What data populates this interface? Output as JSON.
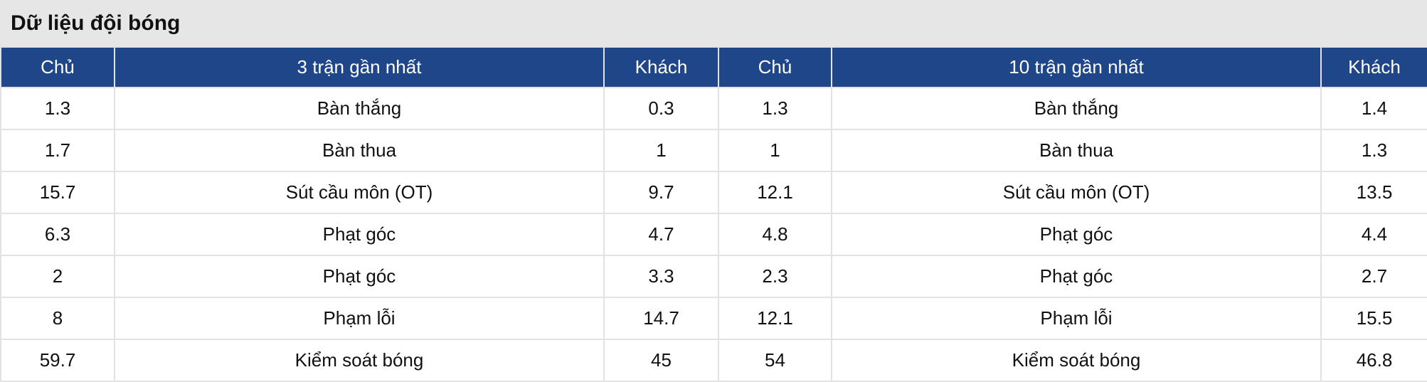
{
  "title": "Dữ liệu đội bóng",
  "header": [
    "Chủ",
    "3 trận gần nhất",
    "Khách",
    "Chủ",
    "10 trận gần nhất",
    "Khách"
  ],
  "rows": [
    [
      "1.3",
      "Bàn thắng",
      "0.3",
      "1.3",
      "Bàn thắng",
      "1.4"
    ],
    [
      "1.7",
      "Bàn thua",
      "1",
      "1",
      "Bàn thua",
      "1.3"
    ],
    [
      "15.7",
      "Sút cầu môn (OT)",
      "9.7",
      "12.1",
      "Sút cầu môn (OT)",
      "13.5"
    ],
    [
      "6.3",
      "Phạt góc",
      "4.7",
      "4.8",
      "Phạt góc",
      "4.4"
    ],
    [
      "2",
      "Phạt góc",
      "3.3",
      "2.3",
      "Phạt góc",
      "2.7"
    ],
    [
      "8",
      "Phạm lỗi",
      "14.7",
      "12.1",
      "Phạm lỗi",
      "15.5"
    ],
    [
      "59.7",
      "Kiểm soát bóng",
      "45",
      "54",
      "Kiểm soát bóng",
      "46.8"
    ]
  ],
  "colors": {
    "header_bg": "#1f4688",
    "title_bg": "#e6e6e6"
  }
}
